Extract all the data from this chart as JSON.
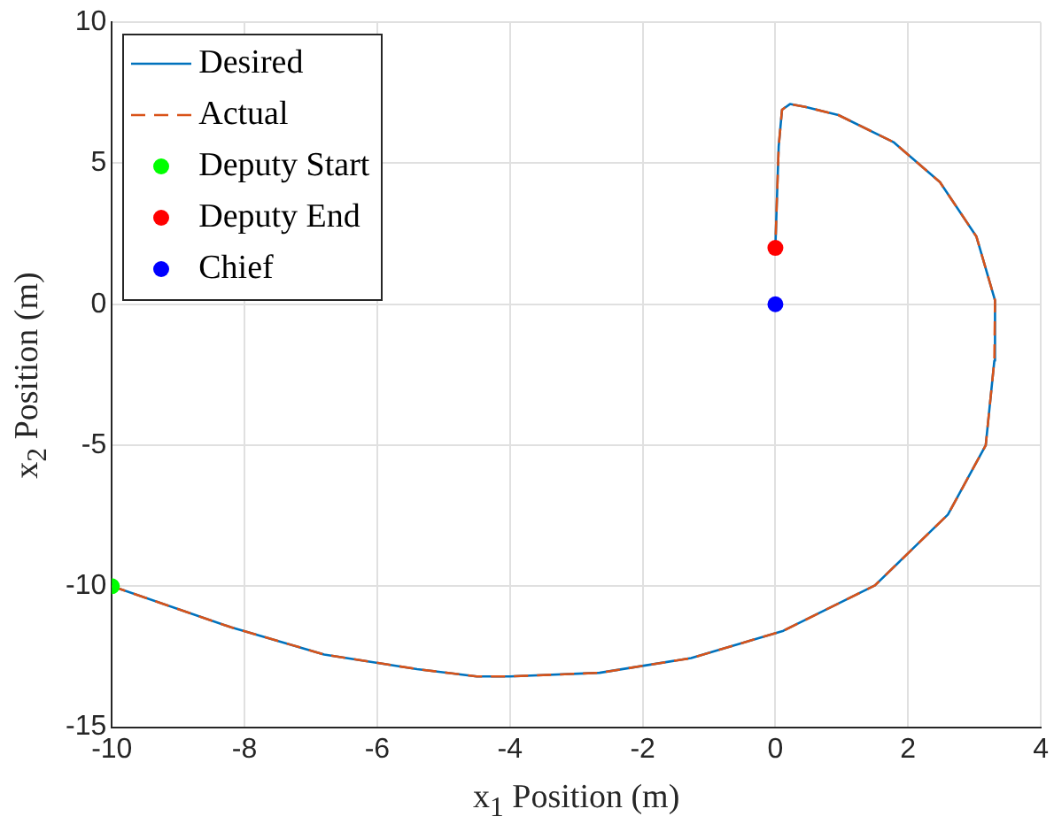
{
  "chart_data": {
    "type": "line",
    "xlabel": "x$_{1}$ Position (m)",
    "ylabel": "x$_{2}$ Position (m)",
    "xlim": [
      -10,
      4
    ],
    "xticks": [
      -10,
      -8,
      -6,
      -4,
      -2,
      0,
      2,
      4
    ],
    "ylim": [
      -15,
      10
    ],
    "yticks": [
      -15,
      -10,
      -5,
      0,
      5,
      10
    ],
    "grid": true,
    "legend": "top left",
    "series": [
      {
        "name": "Desired",
        "color": "#0072bd",
        "line_style": "solid",
        "marker": "none",
        "x": [
          -10,
          -8.2,
          -6.8,
          -5.4,
          -4.5,
          -4.0,
          -2.65,
          -1.27,
          0.12,
          1.5,
          2.6,
          3.17,
          3.3,
          3.31,
          3.03,
          2.48,
          1.78,
          0.95,
          0.45,
          0.22,
          0.1,
          0.05,
          0.02,
          0
        ],
        "values": [
          -10,
          -11.46,
          -12.42,
          -12.94,
          -13.2,
          -13.2,
          -13.07,
          -12.55,
          -11.58,
          -9.97,
          -7.46,
          -5.0,
          -2.0,
          0.14,
          2.4,
          4.33,
          5.75,
          6.71,
          7.0,
          7.1,
          6.9,
          5.6,
          3.5,
          2
        ]
      },
      {
        "name": "Actual",
        "color": "#d95319",
        "line_style": "dashed",
        "marker": "none",
        "x": [
          -10,
          -8.2,
          -6.8,
          -5.4,
          -4.5,
          -4.0,
          -2.65,
          -1.27,
          0.12,
          1.5,
          2.6,
          3.17,
          3.3,
          3.31,
          3.03,
          2.48,
          1.78,
          0.95,
          0.45,
          0.22,
          0.1,
          0.05,
          0.02,
          0
        ],
        "values": [
          -10,
          -11.46,
          -12.42,
          -12.94,
          -13.2,
          -13.2,
          -13.07,
          -12.55,
          -11.58,
          -9.97,
          -7.46,
          -5.0,
          -2.0,
          0.14,
          2.4,
          4.33,
          5.75,
          6.71,
          7.0,
          7.1,
          6.9,
          5.6,
          3.5,
          2
        ]
      },
      {
        "name": "Deputy Start",
        "type": "scatter",
        "color": "#00ff00",
        "marker": "circle",
        "x": [
          -10
        ],
        "values": [
          -10
        ]
      },
      {
        "name": "Deputy End",
        "type": "scatter",
        "color": "#ff0000",
        "marker": "circle",
        "x": [
          0
        ],
        "values": [
          2
        ]
      },
      {
        "name": "Chief",
        "type": "scatter",
        "color": "#0000ff",
        "marker": "circle",
        "x": [
          0
        ],
        "values": [
          0
        ]
      }
    ]
  }
}
